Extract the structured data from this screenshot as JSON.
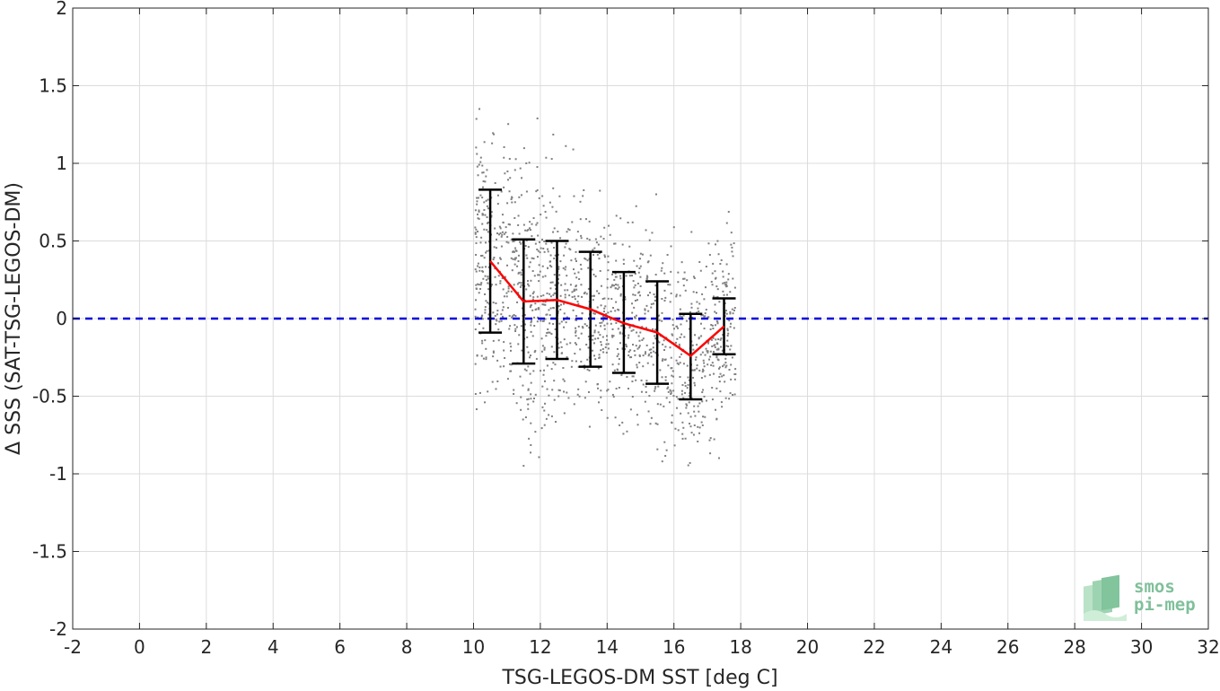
{
  "chart_data": {
    "type": "scatter",
    "xlabel": "TSG-LEGOS-DM SST [deg C]",
    "ylabel": "Δ SSS (SAT-TSG-LEGOS-DM)",
    "xlim": [
      -2,
      32
    ],
    "ylim": [
      -2,
      2
    ],
    "xticks": [
      "-2",
      "0",
      "2",
      "4",
      "6",
      "8",
      "10",
      "12",
      "14",
      "16",
      "18",
      "20",
      "22",
      "24",
      "26",
      "28",
      "30",
      "32"
    ],
    "yticks": [
      "-2",
      "-1.5",
      "-1",
      "-0.5",
      "0",
      "0.5",
      "1",
      "1.5",
      "2"
    ],
    "grid": true,
    "reference_line": {
      "y": 0,
      "color": "#0000dd",
      "style": "dashed"
    },
    "scatter": {
      "color": "#808080",
      "x_range": [
        10.0,
        18.0
      ],
      "y_range": [
        -1.12,
        1.35
      ],
      "description_count": 1500
    },
    "series": [
      {
        "type": "line",
        "color": "#ff0000",
        "x": [
          10.5,
          11.5,
          12.5,
          13.5,
          14.5,
          15.5,
          16.5,
          17.5
        ],
        "y": [
          0.37,
          0.11,
          0.12,
          0.06,
          -0.03,
          -0.09,
          -0.24,
          -0.05
        ]
      },
      {
        "type": "errorbar",
        "color": "#000000",
        "x": [
          10.5,
          11.5,
          12.5,
          13.5,
          14.5,
          15.5,
          16.5,
          17.5
        ],
        "lower": [
          -0.09,
          -0.29,
          -0.26,
          -0.31,
          -0.35,
          -0.42,
          -0.52,
          -0.23
        ],
        "upper": [
          0.83,
          0.51,
          0.5,
          0.43,
          0.3,
          0.24,
          0.03,
          0.13
        ]
      }
    ]
  },
  "logo": {
    "line1": "smos",
    "line2": "pi-mep",
    "color": "#7fc09a"
  }
}
